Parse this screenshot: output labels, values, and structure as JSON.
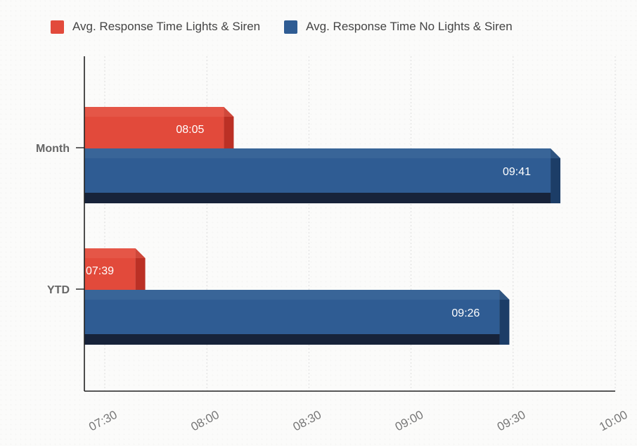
{
  "chart_data": {
    "type": "bar",
    "orientation": "horizontal",
    "categories": [
      "Month",
      "YTD"
    ],
    "series": [
      {
        "name": "Avg. Response Time Lights & Siren",
        "values": [
          "08:05",
          "07:39"
        ],
        "labels": [
          "08:05",
          "07:39"
        ],
        "color": "#e24a3b"
      },
      {
        "name": "Avg. Response Time No Lights & Siren",
        "values": [
          "09:41",
          "09:26"
        ],
        "labels": [
          "09:41",
          "09:26"
        ],
        "color": "#2f5c93"
      }
    ],
    "x_ticks": [
      "07:30",
      "08:00",
      "08:30",
      "09:00",
      "09:30",
      "10:00"
    ],
    "xlim": [
      "07:24",
      "10:00"
    ],
    "grid": true,
    "legend_position": "top",
    "title": "",
    "xlabel": "",
    "ylabel": ""
  }
}
